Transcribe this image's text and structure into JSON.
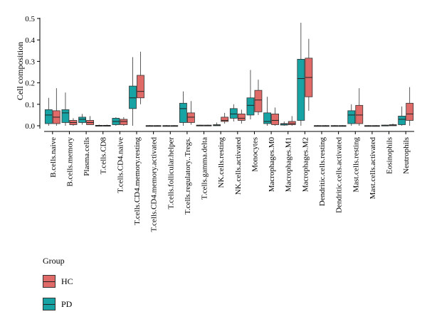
{
  "chart_data": {
    "type": "boxplot",
    "ylabel": "Cell composition",
    "yticks": [
      "0.0",
      "0.1",
      "0.2",
      "0.3",
      "0.4",
      "0.5"
    ],
    "ylim": [
      -0.01,
      0.5
    ],
    "categories": [
      "B.cells.naive",
      "B.cells.memory",
      "Plasma.cells",
      "T.cells.CD8",
      "T.cells.CD4.naive",
      "T.cells.CD4.memory.resting",
      "T.cells.CD4.memory.activated",
      "T.cells.follicular.helper",
      "T.cells.regulatory..Tregs.",
      "T.cells.gamma.delta",
      "NK.cells.resting",
      "NK.cells.activated",
      "Monocytes",
      "Macrophages.M0",
      "Macrophages.M1",
      "Macrophages.M2",
      "Dendritic.cells.resting",
      "Dendritic.cells.activated",
      "Mast.cells.resting",
      "Mast.cells.activated",
      "Eosinophils",
      "Neutrophils"
    ],
    "legend_title": "Group",
    "legend_position": "bottom-left",
    "series": [
      {
        "name": "PD",
        "color": "#17a3a3",
        "boxes": [
          [
            0,
            0.01,
            0.05,
            0.075,
            0.13
          ],
          [
            0,
            0.015,
            0.06,
            0.075,
            0.155
          ],
          [
            0.005,
            0.015,
            0.03,
            0.04,
            0.055
          ],
          [
            0,
            0,
            0,
            0.002,
            0.005
          ],
          [
            0,
            0.005,
            0.02,
            0.035,
            0.04
          ],
          [
            0,
            0.08,
            0.13,
            0.185,
            0.32
          ],
          [
            0,
            0,
            0,
            0.001,
            0.003
          ],
          [
            0,
            0,
            0,
            0.001,
            0.003
          ],
          [
            0,
            0.015,
            0.08,
            0.105,
            0.16
          ],
          [
            0,
            0,
            0.001,
            0.003,
            0.005
          ],
          [
            0,
            0,
            0.003,
            0.005,
            0.015
          ],
          [
            0.02,
            0.035,
            0.055,
            0.08,
            0.1
          ],
          [
            0.03,
            0.05,
            0.095,
            0.13,
            0.26
          ],
          [
            0,
            0.01,
            0.02,
            0.06,
            0.135
          ],
          [
            0,
            0.003,
            0.008,
            0.01,
            0.02
          ],
          [
            0,
            0.025,
            0.22,
            0.31,
            0.48
          ],
          [
            0,
            0,
            0,
            0.001,
            0.003
          ],
          [
            0,
            0,
            0,
            0.001,
            0.003
          ],
          [
            0,
            0.01,
            0.05,
            0.07,
            0.1
          ],
          [
            0,
            0,
            0,
            0.001,
            0.003
          ],
          [
            0,
            0,
            0.002,
            0.003,
            0.005
          ],
          [
            0,
            0.005,
            0.03,
            0.045,
            0.09
          ]
        ]
      },
      {
        "name": "HC",
        "color": "#e06a68",
        "boxes": [
          [
            0,
            0.01,
            0.04,
            0.07,
            0.175
          ],
          [
            0,
            0.005,
            0.015,
            0.025,
            0.035
          ],
          [
            0.005,
            0.005,
            0.015,
            0.025,
            0.045
          ],
          [
            0,
            0,
            0,
            0.002,
            0.005
          ],
          [
            0,
            0.005,
            0.02,
            0.03,
            0.04
          ],
          [
            0.1,
            0.13,
            0.16,
            0.235,
            0.345
          ],
          [
            0,
            0,
            0,
            0.001,
            0.003
          ],
          [
            0,
            0,
            0,
            0.001,
            0.003
          ],
          [
            0.005,
            0.015,
            0.04,
            0.06,
            0.115
          ],
          [
            0,
            0,
            0.001,
            0.003,
            0.005
          ],
          [
            0.01,
            0.02,
            0.025,
            0.04,
            0.06
          ],
          [
            0.01,
            0.025,
            0.035,
            0.055,
            0.075
          ],
          [
            0.05,
            0.065,
            0.12,
            0.165,
            0.215
          ],
          [
            0,
            0.005,
            0.025,
            0.055,
            0.085
          ],
          [
            0,
            0.005,
            0.01,
            0.02,
            0.045
          ],
          [
            0.07,
            0.135,
            0.225,
            0.315,
            0.405
          ],
          [
            0,
            0,
            0,
            0.001,
            0.003
          ],
          [
            0,
            0,
            0,
            0.001,
            0.003
          ],
          [
            0,
            0.01,
            0.05,
            0.095,
            0.175
          ],
          [
            0,
            0,
            0,
            0.001,
            0.003
          ],
          [
            0,
            0,
            0.003,
            0.005,
            0.01
          ],
          [
            0,
            0.025,
            0.055,
            0.105,
            0.18
          ]
        ]
      }
    ],
    "legend_order": [
      "HC",
      "PD"
    ]
  }
}
